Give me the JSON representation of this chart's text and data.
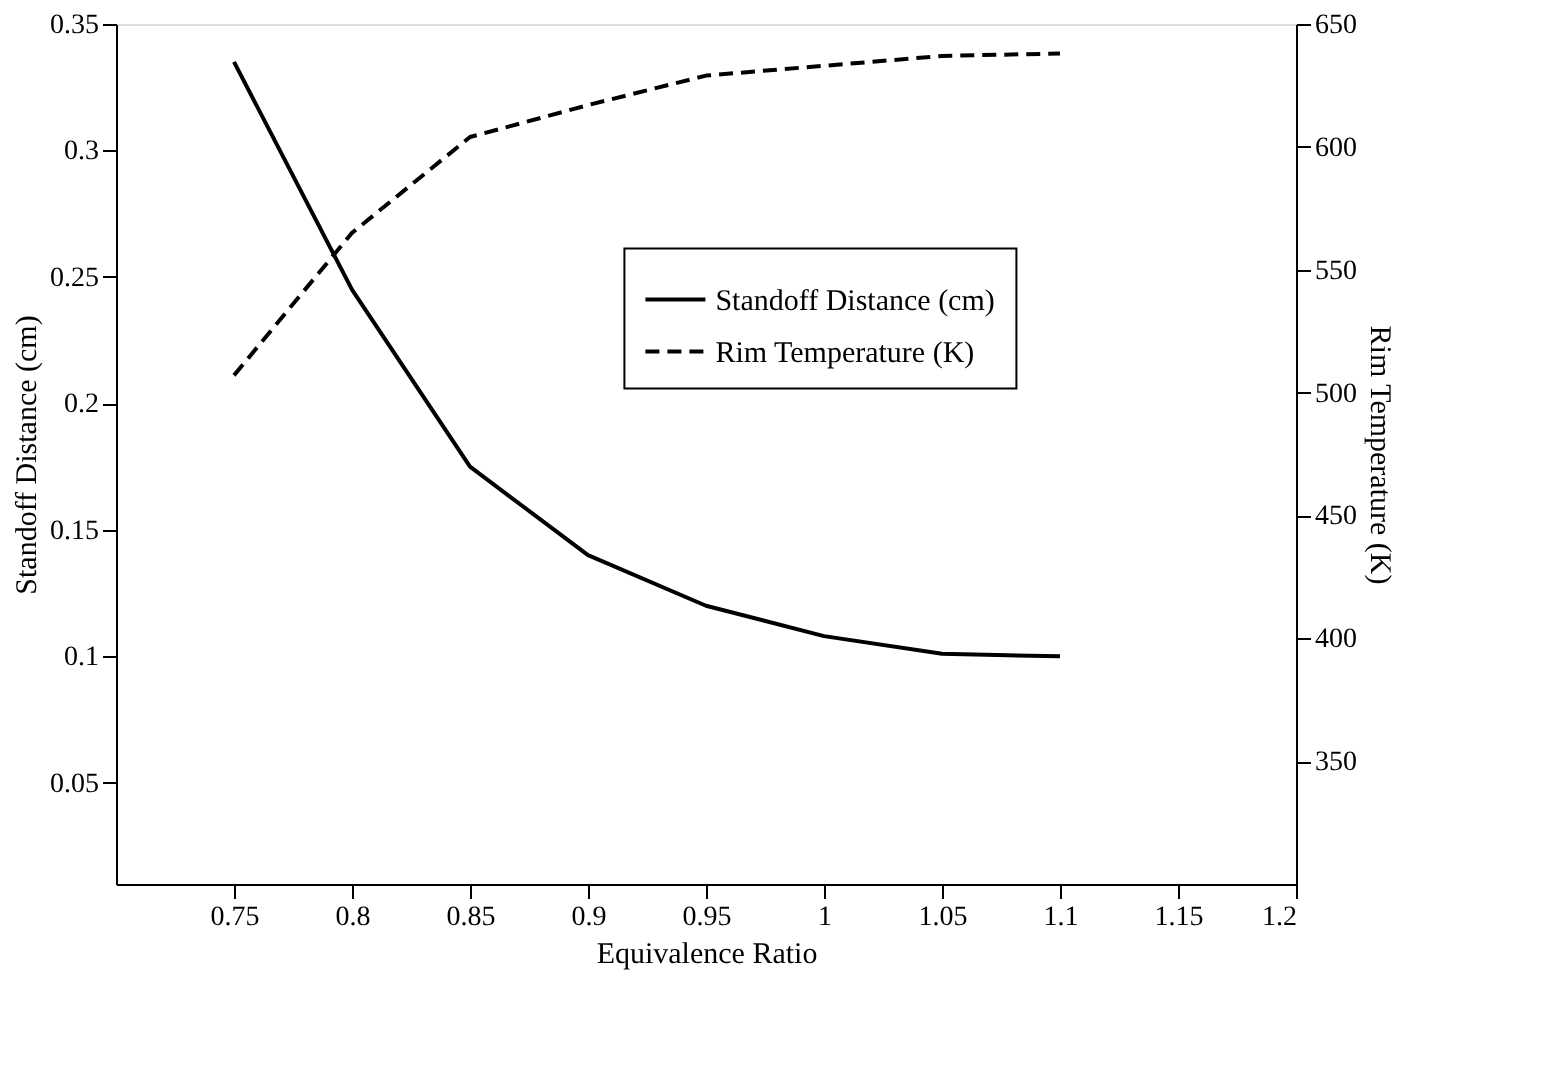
{
  "chart_data": {
    "type": "line",
    "xlabel": "Equivalence Ratio",
    "ylabel": "Standoff Distance (cm)",
    "y2label": "Rim Temperature (K)",
    "x": [
      0.75,
      0.8,
      0.85,
      0.9,
      0.95,
      1.0,
      1.05,
      1.1
    ],
    "series": [
      {
        "name": "Standoff Distance (cm)",
        "color": "#000000",
        "line_style": "solid",
        "values": [
          0.335,
          0.245,
          0.175,
          0.14,
          0.12,
          0.108,
          0.101,
          0.1
        ]
      },
      {
        "name": "Rim Temperature (K)",
        "color": "#000000",
        "line_style": "dashed",
        "axis": "y2",
        "values": [
          507,
          565,
          604,
          617,
          629,
          633,
          637,
          638
        ]
      }
    ],
    "xlim": [
      0.7,
      1.2
    ],
    "xticks": [
      0.75,
      0.8,
      0.85,
      0.9,
      0.95,
      1,
      1.05,
      1.1,
      1.15,
      1.2
    ],
    "ylim": [
      0.01,
      0.35
    ],
    "yticks": [
      0.05,
      0.1,
      0.15,
      0.2,
      0.25,
      0.3,
      0.35
    ],
    "y2lim": [
      300,
      650
    ],
    "y2ticks": [
      350,
      400,
      450,
      500,
      550,
      600,
      650
    ],
    "legend": "right",
    "grid": false,
    "marker": "none"
  }
}
